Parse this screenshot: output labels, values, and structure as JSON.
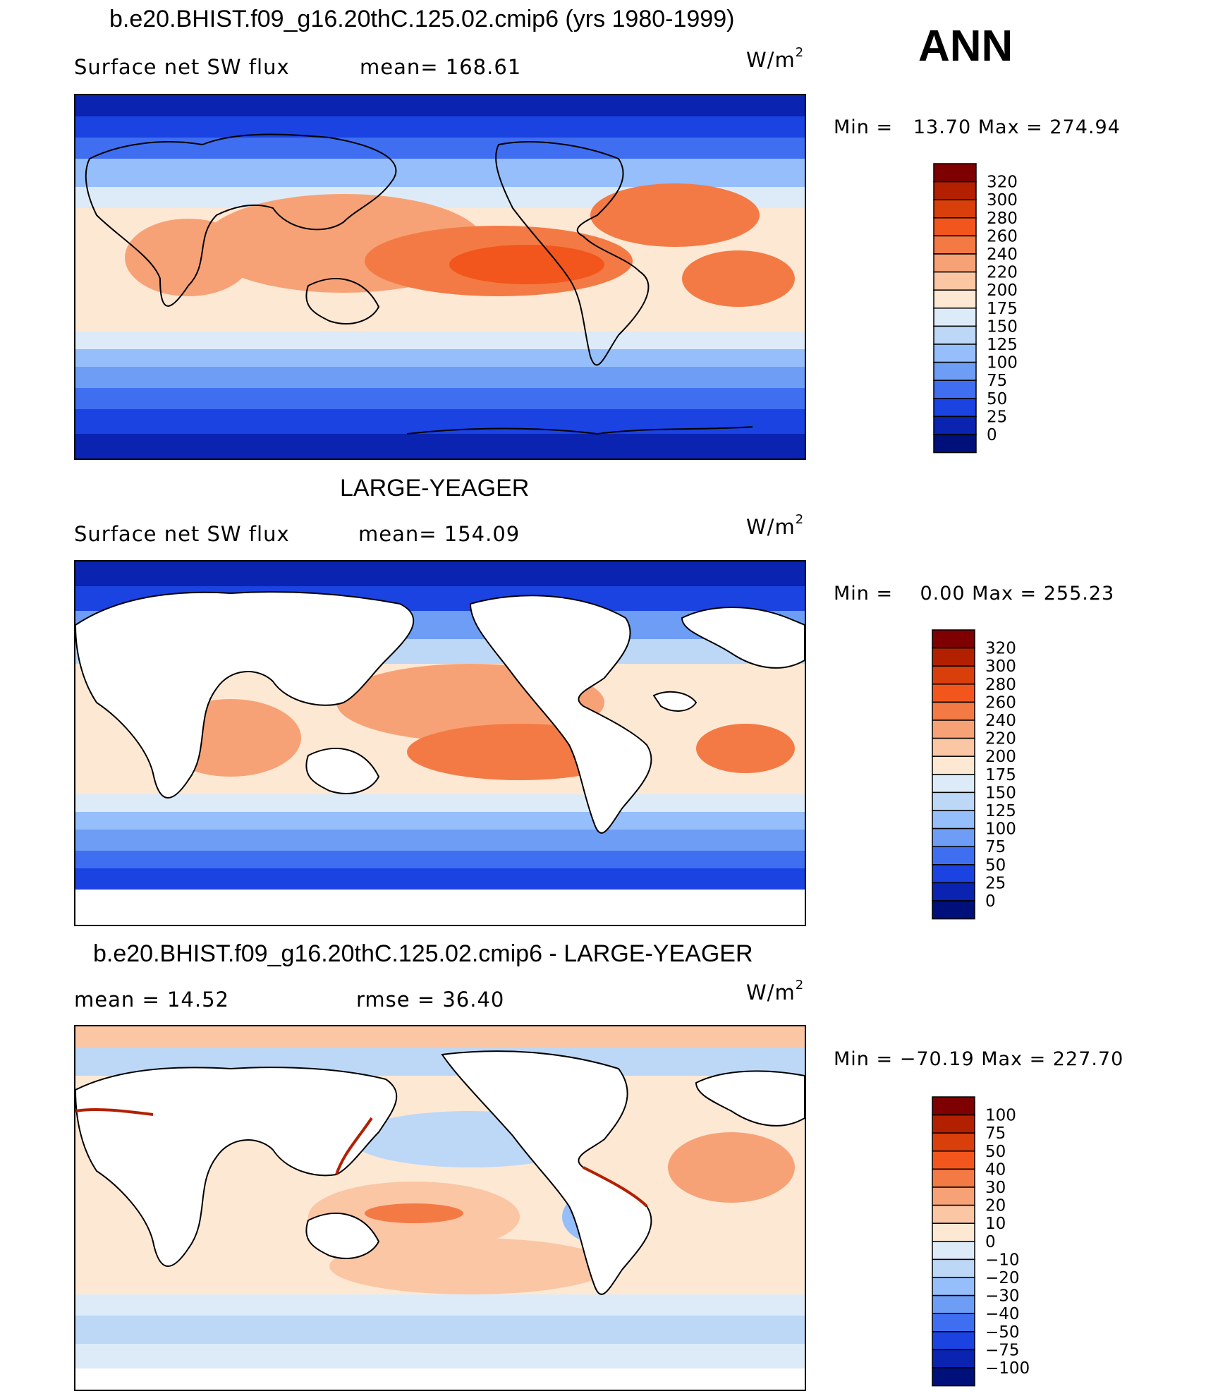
{
  "season": "ANN",
  "panels": [
    {
      "title": "b.e20.BHIST.f09_g16.20thC.125.02.cmip6 (yrs 1980-1999)",
      "left_text": "Surface net SW flux",
      "mid_text": "mean=  168.61",
      "units": "W/m",
      "units_sup": "2",
      "minmax": "Min =   13.70 Max = 274.94",
      "colorbar_labels": [
        "320",
        "300",
        "280",
        "260",
        "240",
        "220",
        "200",
        "175",
        "150",
        "125",
        "100",
        "75",
        "50",
        "25",
        "0"
      ]
    },
    {
      "title": "LARGE-YEAGER",
      "left_text": "Surface net SW flux",
      "mid_text": "mean=  154.09",
      "units": "W/m",
      "units_sup": "2",
      "minmax": "Min =    0.00 Max = 255.23",
      "colorbar_labels": [
        "320",
        "300",
        "280",
        "260",
        "240",
        "220",
        "200",
        "175",
        "150",
        "125",
        "100",
        "75",
        "50",
        "25",
        "0"
      ]
    },
    {
      "title": "b.e20.BHIST.f09_g16.20thC.125.02.cmip6 - LARGE-YEAGER",
      "left_text": "mean =    14.52",
      "mid_text": "rmse =    36.40",
      "units": "W/m",
      "units_sup": "2",
      "minmax": "Min = −70.19 Max = 227.70",
      "colorbar_labels": [
        "100",
        "75",
        "50",
        "40",
        "30",
        "20",
        "10",
        "0",
        "−10",
        "−20",
        "−30",
        "−40",
        "−50",
        "−75",
        "−100"
      ]
    }
  ],
  "colors": {
    "scale": [
      "#7f0000",
      "#b22000",
      "#d93f0a",
      "#f2561c",
      "#f47a45",
      "#f7a276",
      "#fac6a4",
      "#fde8d4",
      "#ddebf9",
      "#bdd7f6",
      "#95befa",
      "#6e9df5",
      "#3f6ff0",
      "#1a43e2",
      "#0a23b0",
      "#00107a"
    ],
    "land": "#ffffff",
    "coast": "#000000"
  }
}
